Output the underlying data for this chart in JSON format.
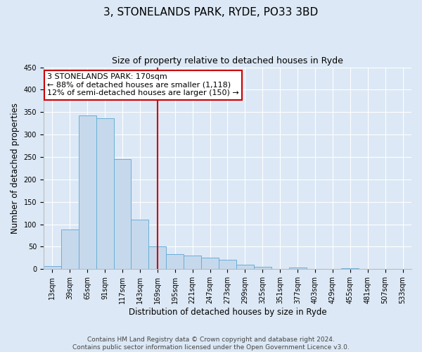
{
  "title": "3, STONELANDS PARK, RYDE, PO33 3BD",
  "subtitle": "Size of property relative to detached houses in Ryde",
  "xlabel": "Distribution of detached houses by size in Ryde",
  "ylabel": "Number of detached properties",
  "categories": [
    "13sqm",
    "39sqm",
    "65sqm",
    "91sqm",
    "117sqm",
    "143sqm",
    "169sqm",
    "195sqm",
    "221sqm",
    "247sqm",
    "273sqm",
    "299sqm",
    "325sqm",
    "351sqm",
    "377sqm",
    "403sqm",
    "429sqm",
    "455sqm",
    "481sqm",
    "507sqm",
    "533sqm"
  ],
  "values": [
    7,
    89,
    342,
    336,
    246,
    111,
    50,
    33,
    30,
    25,
    21,
    10,
    5,
    0,
    3,
    0,
    0,
    2,
    0,
    0,
    1
  ],
  "bar_color": "#c6d9ec",
  "bar_edge_color": "#6aaed6",
  "vline_index": 6,
  "vline_color": "#cc0000",
  "annotation_line1": "3 STONELANDS PARK: 170sqm",
  "annotation_line2": "← 88% of detached houses are smaller (1,118)",
  "annotation_line3": "12% of semi-detached houses are larger (150) →",
  "annotation_box_color": "#ffffff",
  "annotation_box_edge": "#cc0000",
  "ylim": [
    0,
    450
  ],
  "yticks": [
    0,
    50,
    100,
    150,
    200,
    250,
    300,
    350,
    400,
    450
  ],
  "footer_line1": "Contains HM Land Registry data © Crown copyright and database right 2024.",
  "footer_line2": "Contains public sector information licensed under the Open Government Licence v3.0.",
  "bg_color": "#dce8f5",
  "plot_bg_color": "#dce8f5",
  "title_fontsize": 11,
  "subtitle_fontsize": 9,
  "axis_label_fontsize": 8.5,
  "tick_fontsize": 7,
  "annotation_fontsize": 8,
  "footer_fontsize": 6.5
}
